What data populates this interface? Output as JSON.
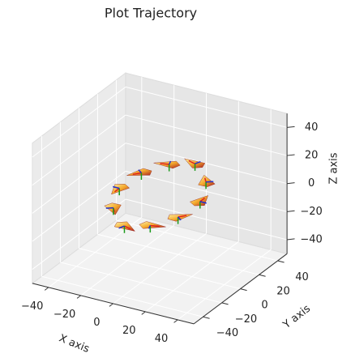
{
  "chart_data": {
    "type": "scatter3d",
    "title": "Plot Trajectory",
    "x_label": "X axis",
    "y_label": "Y axis",
    "z_label": "Z axis",
    "xlim": [
      -50,
      50
    ],
    "ylim": [
      -50,
      50
    ],
    "zlim": [
      -50,
      50
    ],
    "xticks": [
      {
        "value": -40,
        "label": "−40"
      },
      {
        "value": -20,
        "label": "−20"
      },
      0,
      20,
      40
    ],
    "yticks": [
      {
        "value": -40,
        "label": "−40"
      },
      {
        "value": -20,
        "label": "−20"
      },
      0,
      20,
      40
    ],
    "zticks": [
      {
        "value": -40,
        "label": "−40"
      },
      {
        "value": -20,
        "label": "−20"
      },
      0,
      20,
      40
    ],
    "grid": true,
    "series": [
      {
        "color": "#f7c33a",
        "x": [
          25,
          20,
          8,
          -8,
          -20,
          -25,
          -20,
          -8,
          8,
          20
        ],
        "y": [
          0,
          15,
          24,
          24,
          15,
          0,
          -15,
          -24,
          -24,
          -15
        ],
        "z": [
          5,
          10,
          15,
          10,
          5,
          0,
          -5,
          -10,
          -5,
          0
        ]
      }
    ]
  }
}
